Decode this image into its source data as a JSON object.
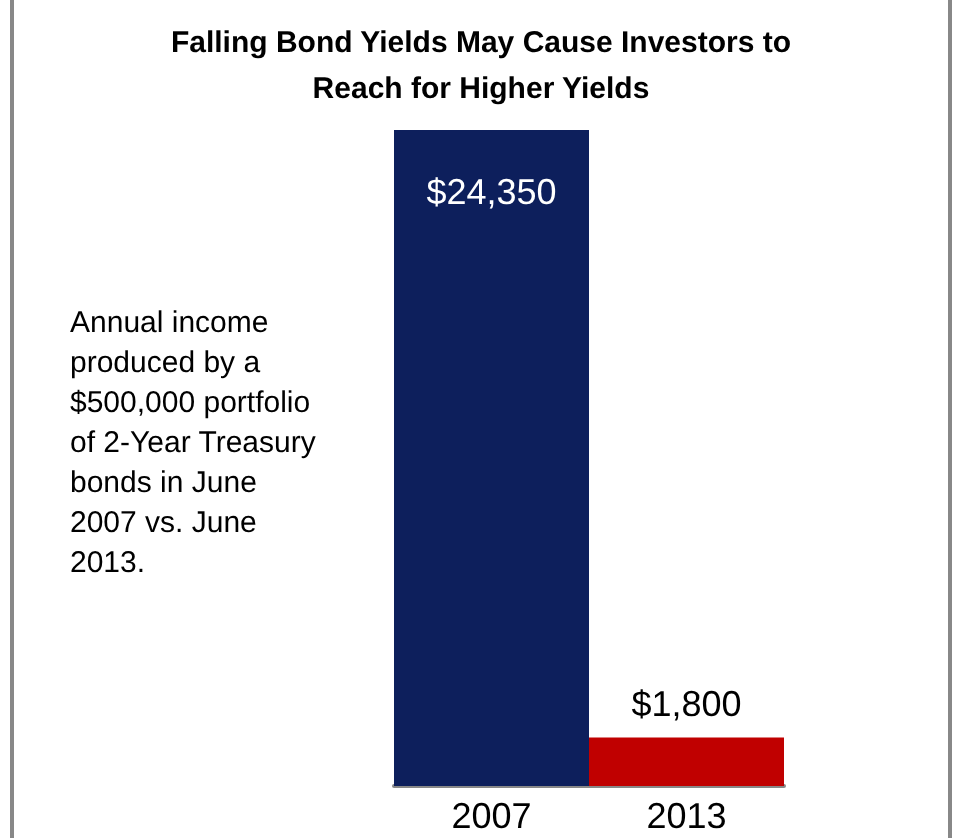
{
  "chart_data": {
    "type": "bar",
    "title": "Falling Bond Yields May Cause Investors to Reach for Higher Yields",
    "categories": [
      "2007",
      "2013"
    ],
    "values": [
      24350,
      1800
    ],
    "colors": [
      "#0d1f5c",
      "#c00000"
    ],
    "value_labels": [
      "$24,350",
      "$1,800"
    ],
    "annotations": [
      "Annual income produced by a $500,000 portfolio of 2-Year Treasury bonds in June 2007 vs. June 2013."
    ]
  }
}
